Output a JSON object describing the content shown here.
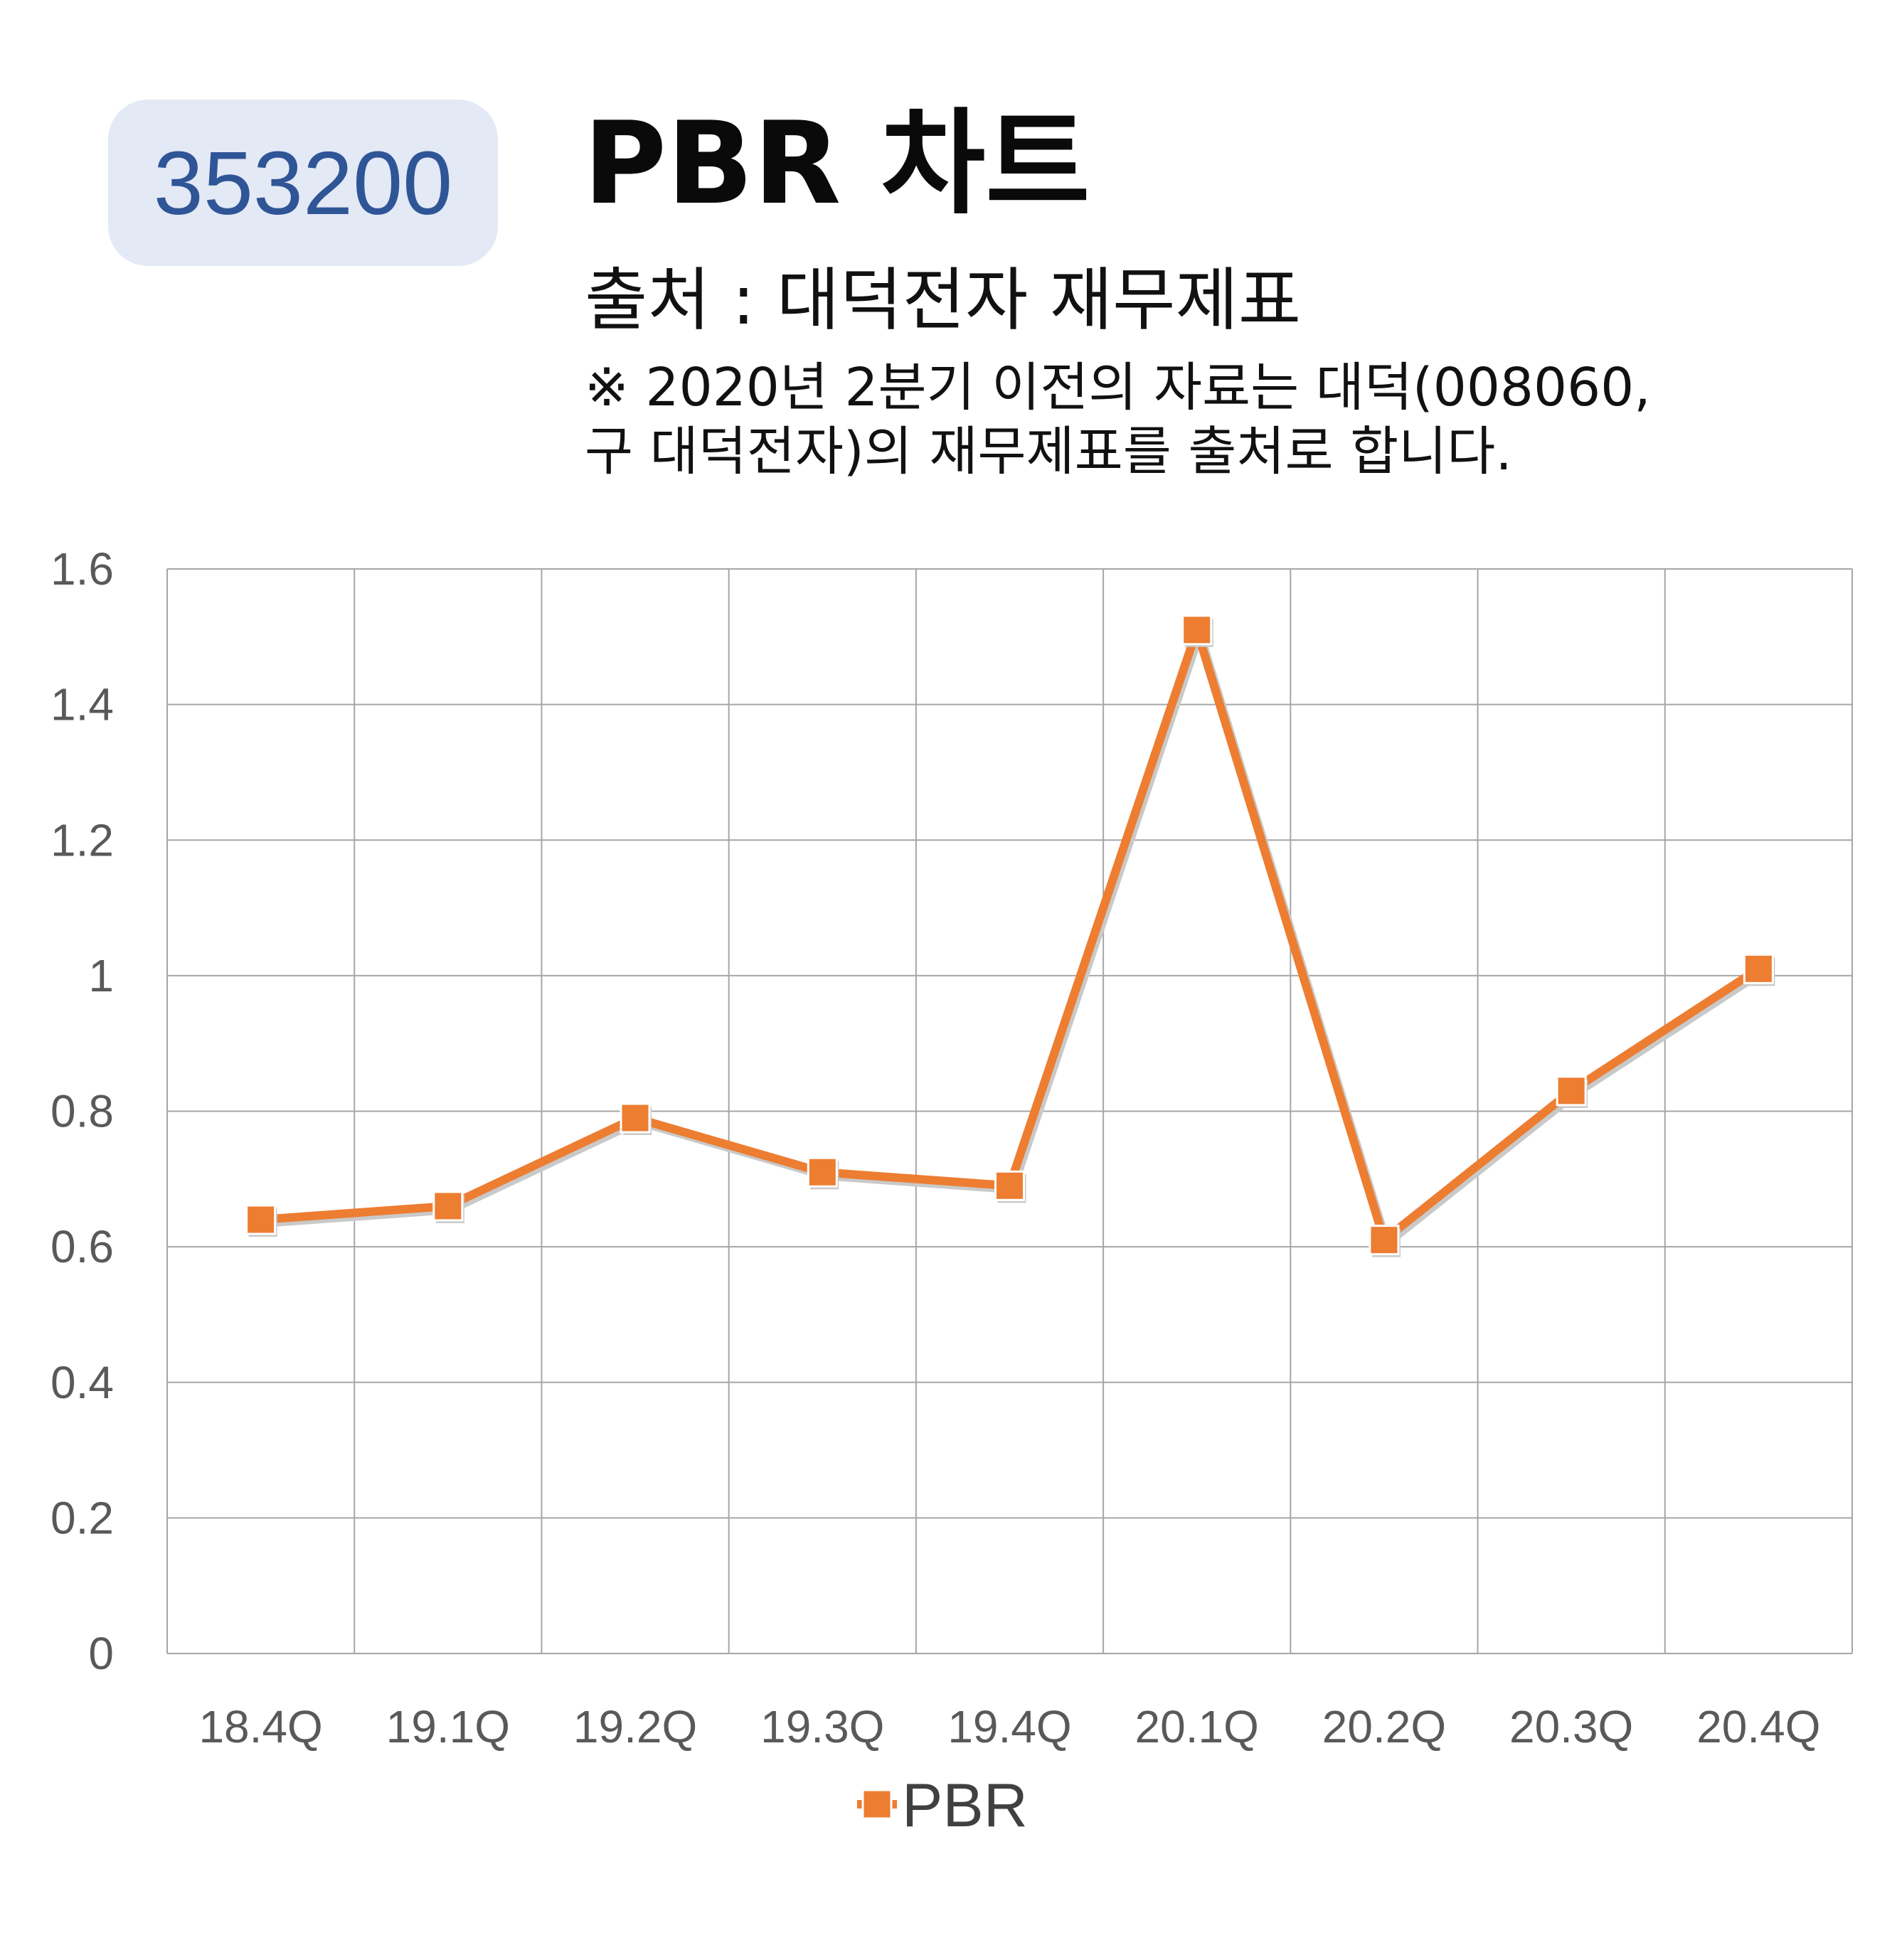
{
  "badge": {
    "code": "353200"
  },
  "header": {
    "title": "PBR 차트",
    "source": "출처 : 대덕전자 재무제표",
    "note_line1": "※ 2020년 2분기 이전의 자료는 대덕(008060,",
    "note_line2": "구 대덕전자)의 재무제표를 출처로 합니다."
  },
  "colors": {
    "badge_bg": "#e3e9f5",
    "badge_text": "#2f5597",
    "series": "#ed7d31",
    "grid": "#a6a6a6"
  },
  "chart_data": {
    "type": "line",
    "categories": [
      "18.4Q",
      "19.1Q",
      "19.2Q",
      "19.3Q",
      "19.4Q",
      "20.1Q",
      "20.2Q",
      "20.3Q",
      "20.4Q"
    ],
    "series": [
      {
        "name": "PBR",
        "values": [
          0.64,
          0.66,
          0.79,
          0.71,
          0.69,
          1.51,
          0.61,
          0.83,
          1.01
        ],
        "marker": "square"
      }
    ],
    "yticks": [
      "0",
      "0.2",
      "0.4",
      "0.6",
      "0.8",
      "1",
      "1.2",
      "1.4",
      "1.6"
    ],
    "ylim": [
      0,
      1.6
    ],
    "grid": true,
    "legend_position": "bottom"
  }
}
